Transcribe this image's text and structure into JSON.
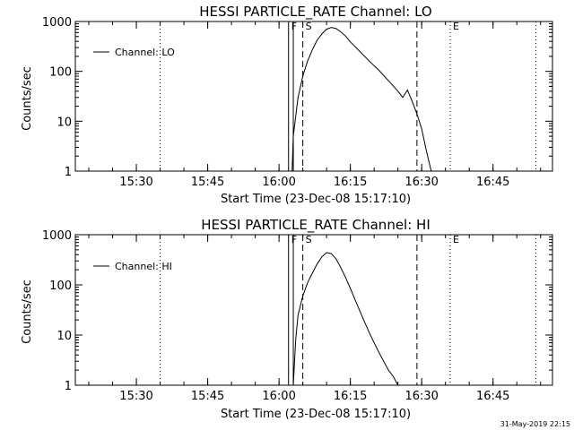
{
  "stamp": "31-May-2019 22:15",
  "colors": {
    "background": "#ffffff",
    "foreground": "#000000"
  },
  "chart_data": [
    {
      "type": "line",
      "title": "HESSI PARTICLE_RATE Channel: LO",
      "xlabel": "Start Time (23-Dec-08 15:17:10)",
      "ylabel": "Counts/sec",
      "y_scale": "log",
      "ylim": [
        1,
        1000
      ],
      "xlim": [
        "15:17:10",
        "16:57:30"
      ],
      "x_tick_labels": [
        "15:30",
        "15:45",
        "16:00",
        "16:15",
        "16:30",
        "16:45"
      ],
      "y_tick_labels": [
        "1",
        "10",
        "100",
        "1000"
      ],
      "legend": {
        "position": "top-left",
        "entries": [
          "Channel: LO"
        ]
      },
      "grid": false,
      "markers": {
        "dotted_times": [
          "15:35",
          "16:36",
          "16:54"
        ],
        "solid_times": [
          "16:02",
          "16:03"
        ],
        "dashed_times": [
          "16:05",
          "16:29"
        ],
        "labels": [
          {
            "text": "F",
            "time": "16:02"
          },
          {
            "text": "S",
            "time": "16:05"
          },
          {
            "text": "E",
            "time": "16:36"
          }
        ]
      },
      "series": [
        {
          "name": "Channel: LO",
          "x": [
            "16:02:45",
            "16:03:00",
            "16:04:00",
            "16:05:00",
            "16:06:00",
            "16:07:00",
            "16:08:00",
            "16:09:00",
            "16:10:00",
            "16:11:00",
            "16:12:00",
            "16:13:00",
            "16:14:00",
            "16:15:00",
            "16:17:00",
            "16:19:00",
            "16:21:00",
            "16:23:00",
            "16:25:00",
            "16:26:00",
            "16:27:00",
            "16:28:00",
            "16:29:00",
            "16:30:00",
            "16:31:00",
            "16:32:00"
          ],
          "y": [
            1,
            5,
            30,
            80,
            160,
            270,
            420,
            560,
            700,
            760,
            720,
            620,
            510,
            390,
            250,
            160,
            105,
            65,
            40,
            30,
            42,
            25,
            14,
            7,
            2.5,
            1
          ]
        }
      ]
    },
    {
      "type": "line",
      "title": "HESSI PARTICLE_RATE Channel: HI",
      "xlabel": "Start Time (23-Dec-08 15:17:10)",
      "ylabel": "Counts/sec",
      "y_scale": "log",
      "ylim": [
        1,
        1000
      ],
      "xlim": [
        "15:17:10",
        "16:57:30"
      ],
      "x_tick_labels": [
        "15:30",
        "15:45",
        "16:00",
        "16:15",
        "16:30",
        "16:45"
      ],
      "y_tick_labels": [
        "1",
        "10",
        "100",
        "1000"
      ],
      "legend": {
        "position": "top-left",
        "entries": [
          "Channel: HI"
        ]
      },
      "grid": false,
      "markers": {
        "dotted_times": [
          "15:35",
          "16:36",
          "16:54"
        ],
        "solid_times": [
          "16:02",
          "16:03"
        ],
        "dashed_times": [
          "16:05",
          "16:29"
        ],
        "labels": [
          {
            "text": "F",
            "time": "16:02"
          },
          {
            "text": "S",
            "time": "16:05"
          },
          {
            "text": "E",
            "time": "16:36"
          }
        ]
      },
      "series": [
        {
          "name": "Channel: HI",
          "x": [
            "16:03:00",
            "16:03:30",
            "16:04:00",
            "16:05:00",
            "16:06:00",
            "16:07:00",
            "16:08:00",
            "16:09:00",
            "16:10:00",
            "16:11:00",
            "16:12:00",
            "16:13:00",
            "16:14:00",
            "16:15:00",
            "16:16:00",
            "16:17:00",
            "16:18:00",
            "16:19:00",
            "16:20:00",
            "16:21:00",
            "16:22:00",
            "16:23:00",
            "16:24:00",
            "16:25:00"
          ],
          "y": [
            1,
            8,
            25,
            60,
            110,
            170,
            260,
            360,
            440,
            420,
            330,
            220,
            140,
            85,
            50,
            30,
            18,
            11,
            7,
            4.5,
            3,
            2,
            1.5,
            1
          ]
        }
      ]
    }
  ]
}
